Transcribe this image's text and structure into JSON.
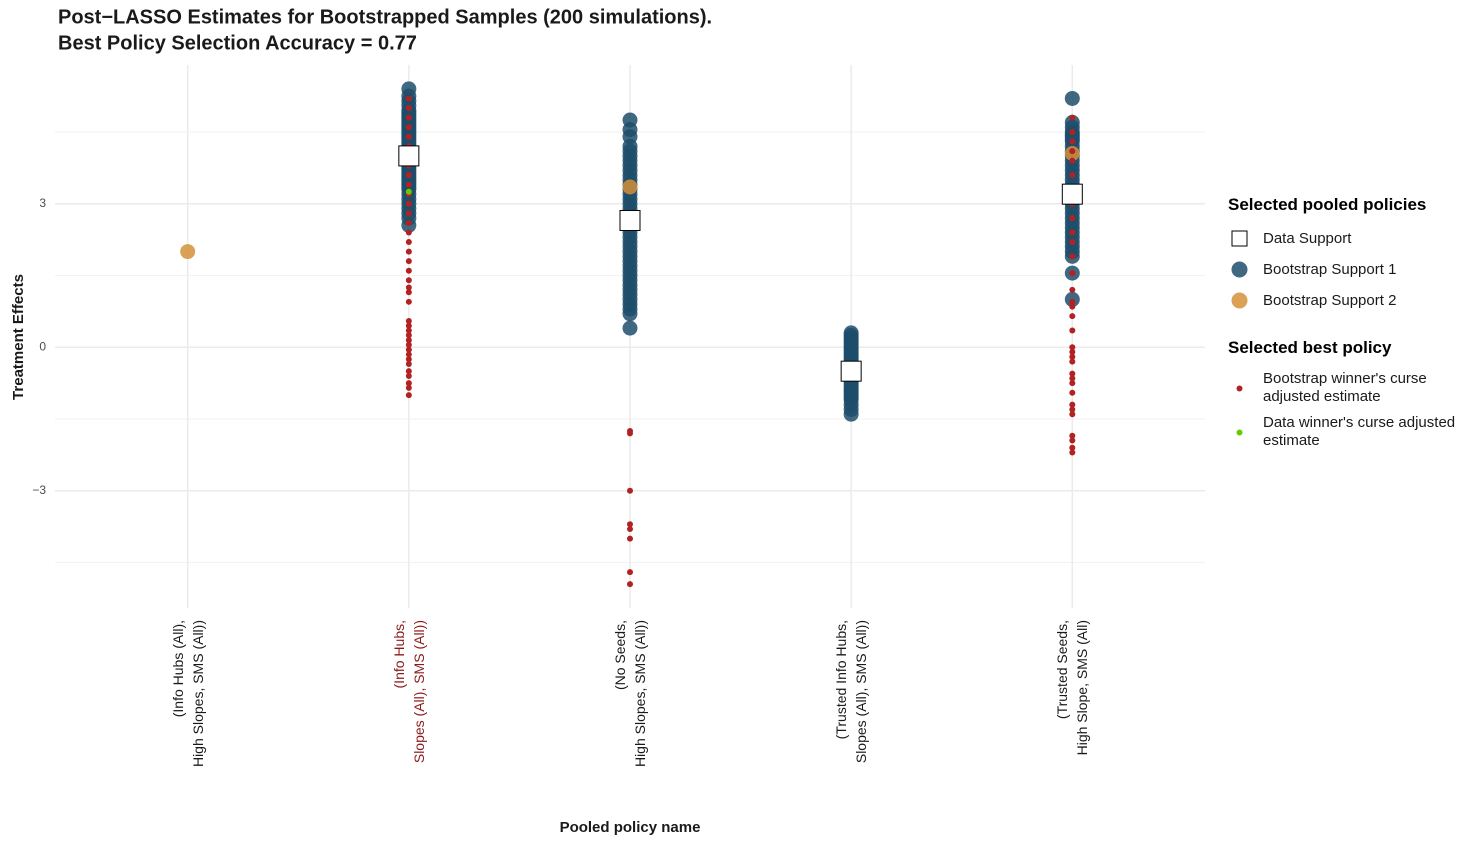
{
  "chart_data": {
    "type": "strip",
    "title": "Post−LASSO Estimates for Bootstrapped Samples (200 simulations).",
    "subtitle": "Best Policy Selection Accuracy = 0.77",
    "x_label": "Pooled policy name",
    "y_label": "Treatment Effects",
    "categories": [
      "(Info Hubs (All),\nHigh Slopes, SMS (All))",
      "(Info Hubs,\nSlopes (All), SMS (All))",
      "(No Seeds,\nHigh Slopes, SMS (All))",
      "(Trusted Info Hubs,\nSlopes (All), SMS (All))",
      "(Trusted Seeds,\nHigh Slope, SMS (All)"
    ],
    "category_label_colors": [
      "#1a1a1a",
      "#8b1a1a",
      "#1a1a1a",
      "#1a1a1a",
      "#1a1a1a"
    ],
    "ylim": [
      -5.45,
      5.9
    ],
    "yticks": [
      {
        "value": -3,
        "label": "−3"
      },
      0,
      3
    ],
    "minor_yticks": [
      -4.5,
      -1.5,
      1.5,
      4.5
    ],
    "grid": true,
    "series_groups": [
      {
        "title": "Selected pooled policies",
        "series": [
          {
            "name": "Data Support",
            "marker": "square",
            "color": "#ffffff",
            "values": [
              [],
              [
                4.0
              ],
              [
                2.65
              ],
              [
                -0.5
              ],
              [
                3.2
              ]
            ]
          },
          {
            "name": "Bootstrap Support 1",
            "marker": "circle",
            "color": "#1f4e6b",
            "values": [
              [],
              [
                5.4,
                5.25,
                5.15,
                5.05,
                4.95,
                4.9,
                4.85,
                4.8,
                4.75,
                4.7,
                4.65,
                4.6,
                4.55,
                4.5,
                4.45,
                4.4,
                4.35,
                4.3,
                4.25,
                4.2,
                4.15,
                4.1,
                4.05,
                3.95,
                3.9,
                3.85,
                3.8,
                3.75,
                3.7,
                3.65,
                3.6,
                3.55,
                3.5,
                3.45,
                3.4,
                3.35,
                3.3,
                3.2,
                3.1,
                3.0,
                2.9,
                2.8,
                2.7,
                2.55
              ],
              [
                4.75,
                4.55,
                4.4,
                4.2,
                4.1,
                4.0,
                3.9,
                3.8,
                3.7,
                3.6,
                3.5,
                3.4,
                3.3,
                3.2,
                3.1,
                3.0,
                2.9,
                2.8,
                2.7,
                2.6,
                2.5,
                2.4,
                2.3,
                2.2,
                2.1,
                2.0,
                1.9,
                1.8,
                1.7,
                1.6,
                1.5,
                1.4,
                1.3,
                1.2,
                1.1,
                1.0,
                0.9,
                0.8,
                0.7,
                0.4
              ],
              [
                0.3,
                0.25,
                0.2,
                0.15,
                0.1,
                0.05,
                0,
                -0.05,
                -0.1,
                -0.15,
                -0.2,
                -0.25,
                -0.3,
                -0.35,
                -0.4,
                -0.45,
                -0.5,
                -0.55,
                -0.6,
                -0.65,
                -0.7,
                -0.75,
                -0.8,
                -0.85,
                -0.9,
                -0.95,
                -1.0,
                -1.05,
                -1.1,
                -1.2,
                -1.3,
                -1.4
              ],
              [
                5.2,
                4.7,
                4.6,
                4.5,
                4.45,
                4.4,
                4.35,
                4.3,
                4.2,
                4.1,
                4.0,
                3.9,
                3.8,
                3.7,
                3.6,
                3.5,
                3.4,
                3.3,
                3.2,
                3.1,
                3.0,
                2.9,
                2.8,
                2.7,
                2.6,
                2.5,
                2.4,
                2.3,
                2.2,
                2.1,
                2.0,
                1.9,
                1.55,
                1.0
              ]
            ]
          },
          {
            "name": "Bootstrap Support 2",
            "marker": "circle",
            "color": "#d4913a",
            "values": [
              [
                2.0
              ],
              [],
              [
                3.35
              ],
              [],
              [
                4.05
              ]
            ]
          }
        ]
      },
      {
        "title": "Selected best policy",
        "series": [
          {
            "name": "Bootstrap winner's curse adjusted estimate",
            "marker": "dot",
            "color": "#b22222",
            "values": [
              [],
              [
                5.2,
                5.0,
                4.8,
                4.6,
                4.4,
                4.2,
                4.0,
                3.8,
                3.6,
                3.4,
                3.2,
                3.0,
                2.8,
                2.6,
                2.4,
                2.2,
                2.0,
                1.8,
                1.6,
                1.4,
                1.25,
                1.15,
                0.95,
                0.55,
                0.45,
                0.35,
                0.25,
                0.15,
                0.05,
                -0.05,
                -0.15,
                -0.25,
                -0.35,
                -0.5,
                -0.6,
                -0.75,
                -0.85,
                -1.0
              ],
              [
                -1.75,
                -1.8,
                -3.0,
                -3.7,
                -3.8,
                -4.0,
                -4.7,
                -4.95
              ],
              [],
              [
                4.8,
                4.5,
                4.3,
                4.1,
                3.9,
                3.6,
                3.3,
                3.0,
                2.7,
                2.4,
                2.2,
                1.9,
                1.55,
                1.2,
                0.95,
                0.85,
                0.65,
                0.35,
                0.0,
                -0.1,
                -0.2,
                -0.3,
                -0.55,
                -0.65,
                -0.75,
                -0.95,
                -1.2,
                -1.3,
                -1.4,
                -1.85,
                -1.95,
                -2.1,
                -2.2
              ]
            ]
          },
          {
            "name": "Data winner's curse adjusted estimate",
            "marker": "dot",
            "color": "#66cc00",
            "values": [
              [],
              [
                3.25
              ],
              [],
              [],
              []
            ]
          }
        ]
      }
    ]
  }
}
